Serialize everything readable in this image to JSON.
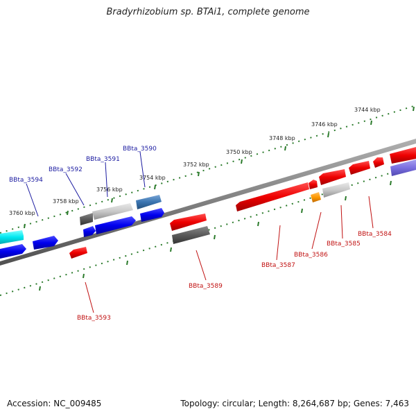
{
  "title": "Bradyrhizobium sp. BTAi1, complete genome",
  "footer": {
    "accession": "Accession: NC_009485",
    "topology": "Topology: circular; Length: 8,264,687 bp; Genes: 7,463"
  },
  "colors": {
    "top_label": "#1a1aa0",
    "bottom_label": "#c01010",
    "dots": "#2a7a2a",
    "backbone": "#808080"
  },
  "ticks": [
    {
      "label": "3760 kbp"
    },
    {
      "label": "3758 kbp"
    },
    {
      "label": "3756 kbp"
    },
    {
      "label": "3754 kbp"
    },
    {
      "label": "3752 kbp"
    },
    {
      "label": "3750 kbp"
    },
    {
      "label": "3748 kbp"
    },
    {
      "label": "3746 kbp"
    },
    {
      "label": "3744 kbp"
    }
  ],
  "genes_top": [
    {
      "name": "BBta_3594"
    },
    {
      "name": "BBta_3592"
    },
    {
      "name": "BBta_3591"
    },
    {
      "name": "BBta_3590"
    }
  ],
  "genes_bottom": [
    {
      "name": "BBta_3593"
    },
    {
      "name": "BBta_3589"
    },
    {
      "name": "BBta_3587"
    },
    {
      "name": "BBta_3586"
    },
    {
      "name": "BBta_3585"
    },
    {
      "name": "BBta_3584"
    }
  ]
}
